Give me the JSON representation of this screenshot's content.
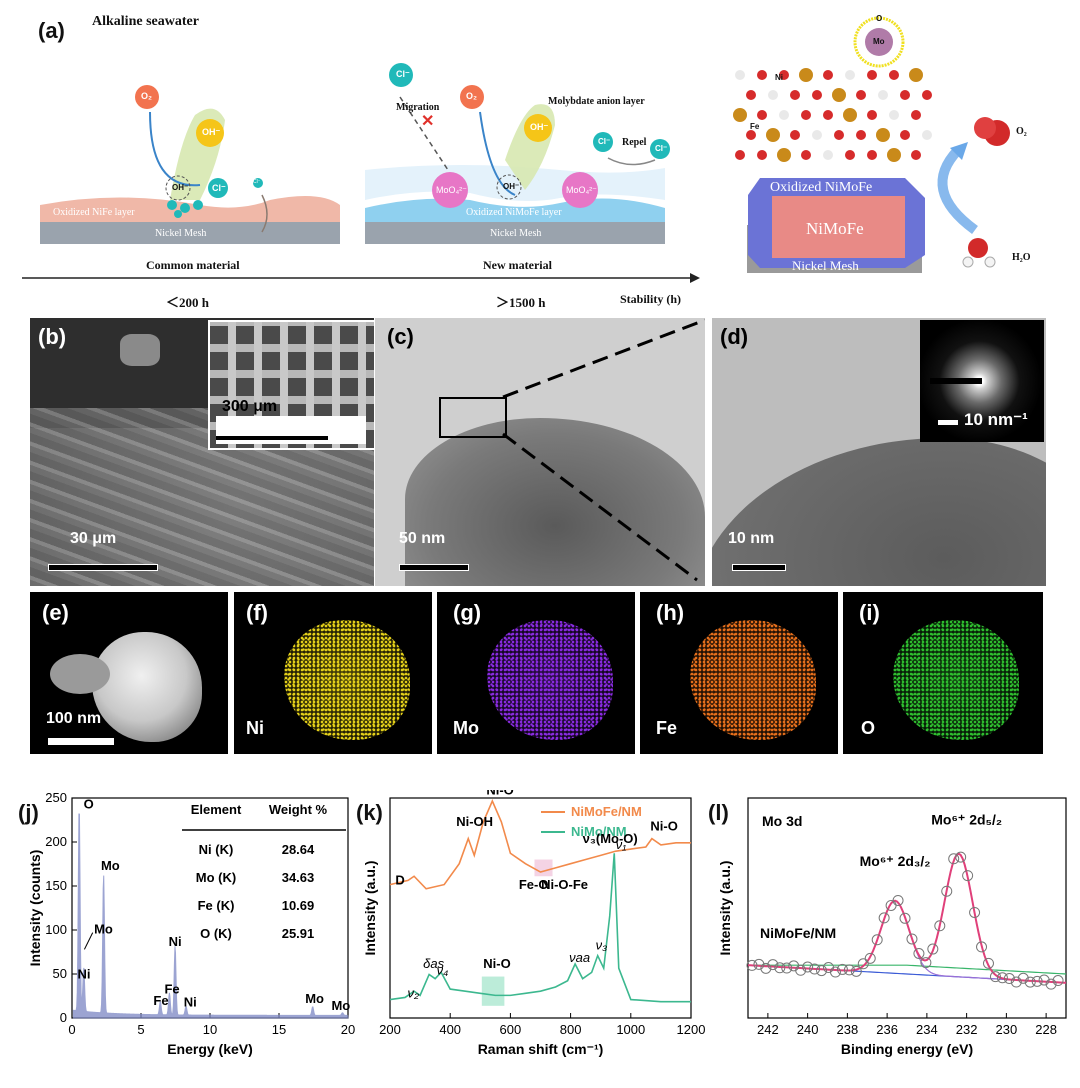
{
  "panel_a": {
    "label": "(a)",
    "title": "Alkaline seawater",
    "left_scheme": {
      "o2": "O₂",
      "oh": "OH⁻",
      "oh_inner": "OH⁻",
      "cl": "Cl⁻",
      "cl_small": "Cl⁻",
      "layer": "Oxidized NiFe layer",
      "base": "Nickel Mesh",
      "caption": "Common material",
      "stability": "＜200 h"
    },
    "mid_scheme": {
      "cl": "Cl⁻",
      "migration": "Migration",
      "o2": "O₂",
      "oh": "OH⁻",
      "oh_inner": "OH⁻",
      "moo4_left": "MoO₄²⁻",
      "moo4_right": "MoO₄²⁻",
      "molybdate_layer": "Molybdate anion layer",
      "repel": "Repel",
      "cl_a": "Cl⁻",
      "cl_b": "Cl⁻",
      "layer": "Oxidized NiMoFe layer",
      "base": "Nickel Mesh",
      "caption": "New material",
      "stability": "＞1500 h",
      "axis_label": "Stability (h)"
    },
    "right_scheme": {
      "oxidized": "Oxidized NiMoFe",
      "core": "NiMoFe",
      "base": "Nickel Mesh",
      "o2": "O₂",
      "h2o": "H₂O",
      "mo": "Mo",
      "o": "O",
      "ni": "Ni",
      "fe": "Fe"
    }
  },
  "panel_b": {
    "label": "(b)",
    "scale": "30 μm",
    "inset_scale": "300 μm"
  },
  "panel_c": {
    "label": "(c)",
    "scale": "50 nm"
  },
  "panel_d": {
    "label": "(d)",
    "scale": "10 nm",
    "inset_scale": "10 nm⁻¹"
  },
  "panel_e": {
    "label": "(e)",
    "scale": "100 nm"
  },
  "panel_f": {
    "label": "(f)",
    "element": "Ni",
    "color": "#e6d21a"
  },
  "panel_g": {
    "label": "(g)",
    "element": "Mo",
    "color": "#8a2be2"
  },
  "panel_h": {
    "label": "(h)",
    "element": "Fe",
    "color": "#e8701c"
  },
  "panel_i": {
    "label": "(i)",
    "element": "O",
    "color": "#2fbf2f"
  },
  "chart_data": [
    {
      "panel": "(j)",
      "type": "line",
      "xlabel": "Energy (keV)",
      "ylabel": "Intensity (counts)",
      "xlim": [
        0,
        20
      ],
      "ylim": [
        0,
        250
      ],
      "xticks": [
        0,
        5,
        10,
        15,
        20
      ],
      "yticks": [
        0,
        50,
        100,
        150,
        200,
        250
      ],
      "peaks": [
        {
          "label": "O",
          "x": 0.52,
          "y": 235
        },
        {
          "label": "Ni",
          "x": 0.85,
          "y": 50
        },
        {
          "label": "Mo",
          "x": 2.29,
          "y": 158
        },
        {
          "label": "Fe",
          "x": 6.4,
          "y": 15
        },
        {
          "label": "Fe",
          "x": 7.06,
          "y": 25
        },
        {
          "label": "Ni",
          "x": 7.47,
          "y": 79
        },
        {
          "label": "Ni",
          "x": 8.26,
          "y": 10
        },
        {
          "label": "Mo",
          "x": 17.44,
          "y": 10
        },
        {
          "label": "Mo",
          "x": 19.6,
          "y": 3
        }
      ],
      "peak_labels": [
        "O",
        "Mo",
        "Mo",
        "Ni",
        "Ni",
        "Fe",
        "Fe",
        "Ni",
        "Mo",
        "Mo"
      ],
      "table": {
        "headers": [
          "Element",
          "Weight %"
        ],
        "rows": [
          [
            "Ni (K)",
            "28.64"
          ],
          [
            "Mo (K)",
            "34.63"
          ],
          [
            "Fe (K)",
            "10.69"
          ],
          [
            "O (K)",
            "25.91"
          ]
        ]
      },
      "color": "#7b86c4"
    },
    {
      "panel": "(k)",
      "type": "line",
      "xlabel": "Raman shift (cm⁻¹)",
      "ylabel": "Intensity (a.u.)",
      "xlim": [
        200,
        1200
      ],
      "xticks": [
        200,
        400,
        600,
        800,
        1000,
        1200
      ],
      "series": [
        {
          "name": "NiMoFe/NM",
          "color": "#f28a4b",
          "x": [
            200,
            260,
            280,
            320,
            380,
            430,
            460,
            480,
            510,
            540,
            570,
            600,
            650,
            700,
            750,
            800,
            850,
            900,
            950,
            1000,
            1050,
            1070,
            1100,
            1150,
            1200
          ],
          "y": [
            0.6,
            0.62,
            0.64,
            0.58,
            0.6,
            0.7,
            0.82,
            0.74,
            0.9,
            1.0,
            0.9,
            0.75,
            0.7,
            0.66,
            0.68,
            0.7,
            0.72,
            0.74,
            0.76,
            0.77,
            0.78,
            0.82,
            0.79,
            0.8,
            0.8
          ]
        },
        {
          "name": "NiMo/NM",
          "color": "#3cb88f",
          "x": [
            200,
            250,
            280,
            300,
            330,
            350,
            370,
            400,
            450,
            500,
            550,
            600,
            650,
            700,
            750,
            790,
            815,
            840,
            870,
            890,
            910,
            930,
            945,
            960,
            1000,
            1100,
            1200
          ],
          "y": [
            0.05,
            0.06,
            0.09,
            0.07,
            0.17,
            0.15,
            0.18,
            0.1,
            0.09,
            0.08,
            0.07,
            0.07,
            0.08,
            0.09,
            0.11,
            0.14,
            0.22,
            0.15,
            0.18,
            0.26,
            0.2,
            0.45,
            0.75,
            0.2,
            0.05,
            0.04,
            0.04
          ]
        }
      ],
      "annotations": [
        "Ni-O",
        "Ni-OH",
        "D",
        "ν₃(Mo-O)",
        "Ni-O",
        "Fe-O",
        "Ni-O-Fe",
        "δas",
        "ν₂",
        "ν₄",
        "Ni-O",
        "νaa",
        "ν₃",
        "ν₁"
      ]
    },
    {
      "panel": "(l)",
      "type": "line",
      "title": "Mo 3d",
      "xlabel": "Binding energy (eV)",
      "ylabel": "Intensity (a.u.)",
      "xlim": [
        243,
        227
      ],
      "xticks": [
        242,
        240,
        238,
        236,
        234,
        232,
        230,
        228
      ],
      "sample": "NiMoFe/NM",
      "peaks": [
        {
          "label": "Mo⁶⁺ 2d₃/₂",
          "x": 235.6,
          "y": 0.55
        },
        {
          "label": "Mo⁶⁺ 2d₅/₂",
          "x": 232.4,
          "y": 0.78
        }
      ],
      "colors": {
        "data": "#777777",
        "fit": "#e0407a",
        "peak1": "#9a6fd6",
        "background": "#3b5bd6",
        "baseline": "#38b56a"
      }
    }
  ]
}
